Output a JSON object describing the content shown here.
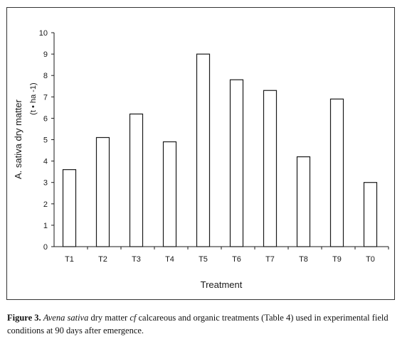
{
  "chart_data": {
    "type": "bar",
    "categories": [
      "T1",
      "T2",
      "T3",
      "T4",
      "T5",
      "T6",
      "T7",
      "T8",
      "T9",
      "T0"
    ],
    "values": [
      3.6,
      5.1,
      6.2,
      4.9,
      9.0,
      7.8,
      7.3,
      4.2,
      6.9,
      3.0
    ],
    "xlabel": "Treatment",
    "ylabel": "A. sativa dry matter",
    "ylabel_unit": "(t • ha -1)",
    "ylim": [
      0,
      10
    ],
    "yticks": [
      0,
      1,
      2,
      3,
      4,
      5,
      6,
      7,
      8,
      9,
      10
    ],
    "grid": false,
    "bar_fill": "#ffffff",
    "bar_stroke": "#1a1a1a"
  },
  "caption": {
    "label": "Figure 3.",
    "species": "Avena sativa",
    "part1": " dry matter ",
    "cf": "cf",
    "part2": " calcareous and organic treatments (Table 4) used in experimental field conditions at 90 days after emergence."
  }
}
